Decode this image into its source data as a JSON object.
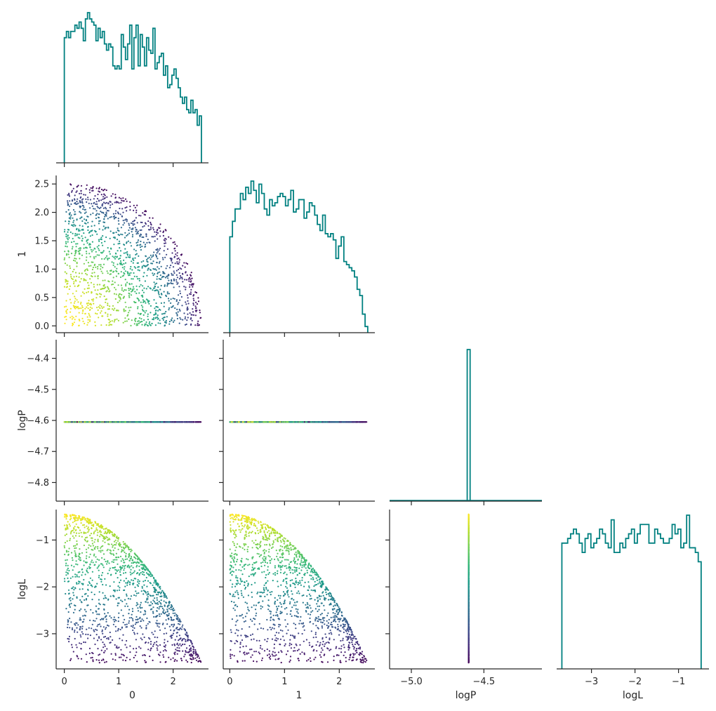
{
  "chart_data": {
    "type": "pairplot-corner",
    "variables": [
      "0",
      "1",
      "logP",
      "logL"
    ],
    "hist_color": "#008080",
    "colormap": "viridis",
    "color_by": "logL",
    "axes": {
      "0": {
        "range": [
          -0.15,
          2.65
        ],
        "ticks": [
          0,
          1,
          2
        ],
        "tick_labels": [
          "0",
          "1",
          "2"
        ],
        "label": "0"
      },
      "1": {
        "range": [
          -0.12,
          2.65
        ],
        "ticks": [
          0.0,
          0.5,
          1.0,
          1.5,
          2.0,
          2.5
        ],
        "tick_labels": [
          "0.0",
          "0.5",
          "1.0",
          "1.5",
          "2.0",
          "2.5"
        ],
        "x_ticks": [
          0,
          1,
          2
        ],
        "x_tick_labels": [
          "0",
          "1",
          "2"
        ],
        "label": "1"
      },
      "logP": {
        "range": [
          -4.86,
          -4.34
        ],
        "ticks": [
          -4.4,
          -4.5,
          -4.6,
          -4.7,
          -4.8
        ],
        "tick_labels": [
          "−4.4",
          "−4.5",
          "−4.6",
          "−4.7",
          "−4.8"
        ],
        "x_range": [
          -5.15,
          -4.1
        ],
        "x_ticks": [
          -5.0,
          -4.5
        ],
        "x_tick_labels": [
          "−5.0",
          "−4.5"
        ],
        "label": "logP"
      },
      "logL": {
        "range": [
          -3.75,
          -0.35
        ],
        "ticks": [
          -1,
          -2,
          -3
        ],
        "tick_labels": [
          "−1",
          "−2",
          "−3"
        ],
        "x_range": [
          -3.8,
          -0.3
        ],
        "x_ticks": [
          -3,
          -2,
          -1
        ],
        "x_tick_labels": [
          "−3",
          "−2",
          "−1"
        ],
        "label": "logL"
      }
    },
    "logP_value": -4.605,
    "radius_max": 2.52,
    "n_points": 1500,
    "histograms": {
      "0": {
        "bin_start": 0.0,
        "bin_end": 2.52,
        "counts": [
          80,
          84,
          80,
          84,
          84,
          88,
          86,
          90,
          86,
          78,
          92,
          96,
          92,
          90,
          88,
          78,
          86,
          80,
          84,
          76,
          72,
          76,
          74,
          62,
          60,
          62,
          60,
          82,
          74,
          66,
          76,
          88,
          60,
          80,
          88,
          62,
          82,
          74,
          62,
          80,
          72,
          70,
          86,
          60,
          64,
          68,
          70,
          56,
          62,
          48,
          50,
          56,
          60,
          54,
          48,
          42,
          38,
          42,
          34,
          32,
          40,
          32,
          34,
          24,
          30
        ]
      },
      "1": {
        "bin_start": 0.0,
        "bin_end": 2.52,
        "counts": [
          62,
          72,
          80,
          80,
          90,
          86,
          94,
          90,
          98,
          92,
          84,
          96,
          90,
          80,
          76,
          86,
          82,
          84,
          88,
          90,
          88,
          82,
          86,
          92,
          78,
          80,
          86,
          86,
          74,
          78,
          84,
          82,
          76,
          70,
          66,
          76,
          64,
          62,
          64,
          60,
          48,
          56,
          62,
          46,
          44,
          42,
          40,
          36,
          28,
          24,
          12,
          4
        ]
      },
      "logP": {
        "bin_start": -4.615,
        "bin_end": -4.595,
        "counts": [
          1
        ]
      },
      "logL": {
        "bin_start": -3.68,
        "bin_end": -0.48,
        "counts": [
          54,
          54,
          56,
          58,
          60,
          58,
          54,
          50,
          56,
          58,
          52,
          54,
          56,
          60,
          58,
          54,
          52,
          64,
          50,
          50,
          54,
          52,
          56,
          58,
          60,
          54,
          58,
          62,
          62,
          62,
          54,
          54,
          60,
          58,
          56,
          54,
          54,
          56,
          62,
          58,
          60,
          52,
          54,
          66,
          52,
          52,
          50,
          46
        ]
      }
    }
  }
}
